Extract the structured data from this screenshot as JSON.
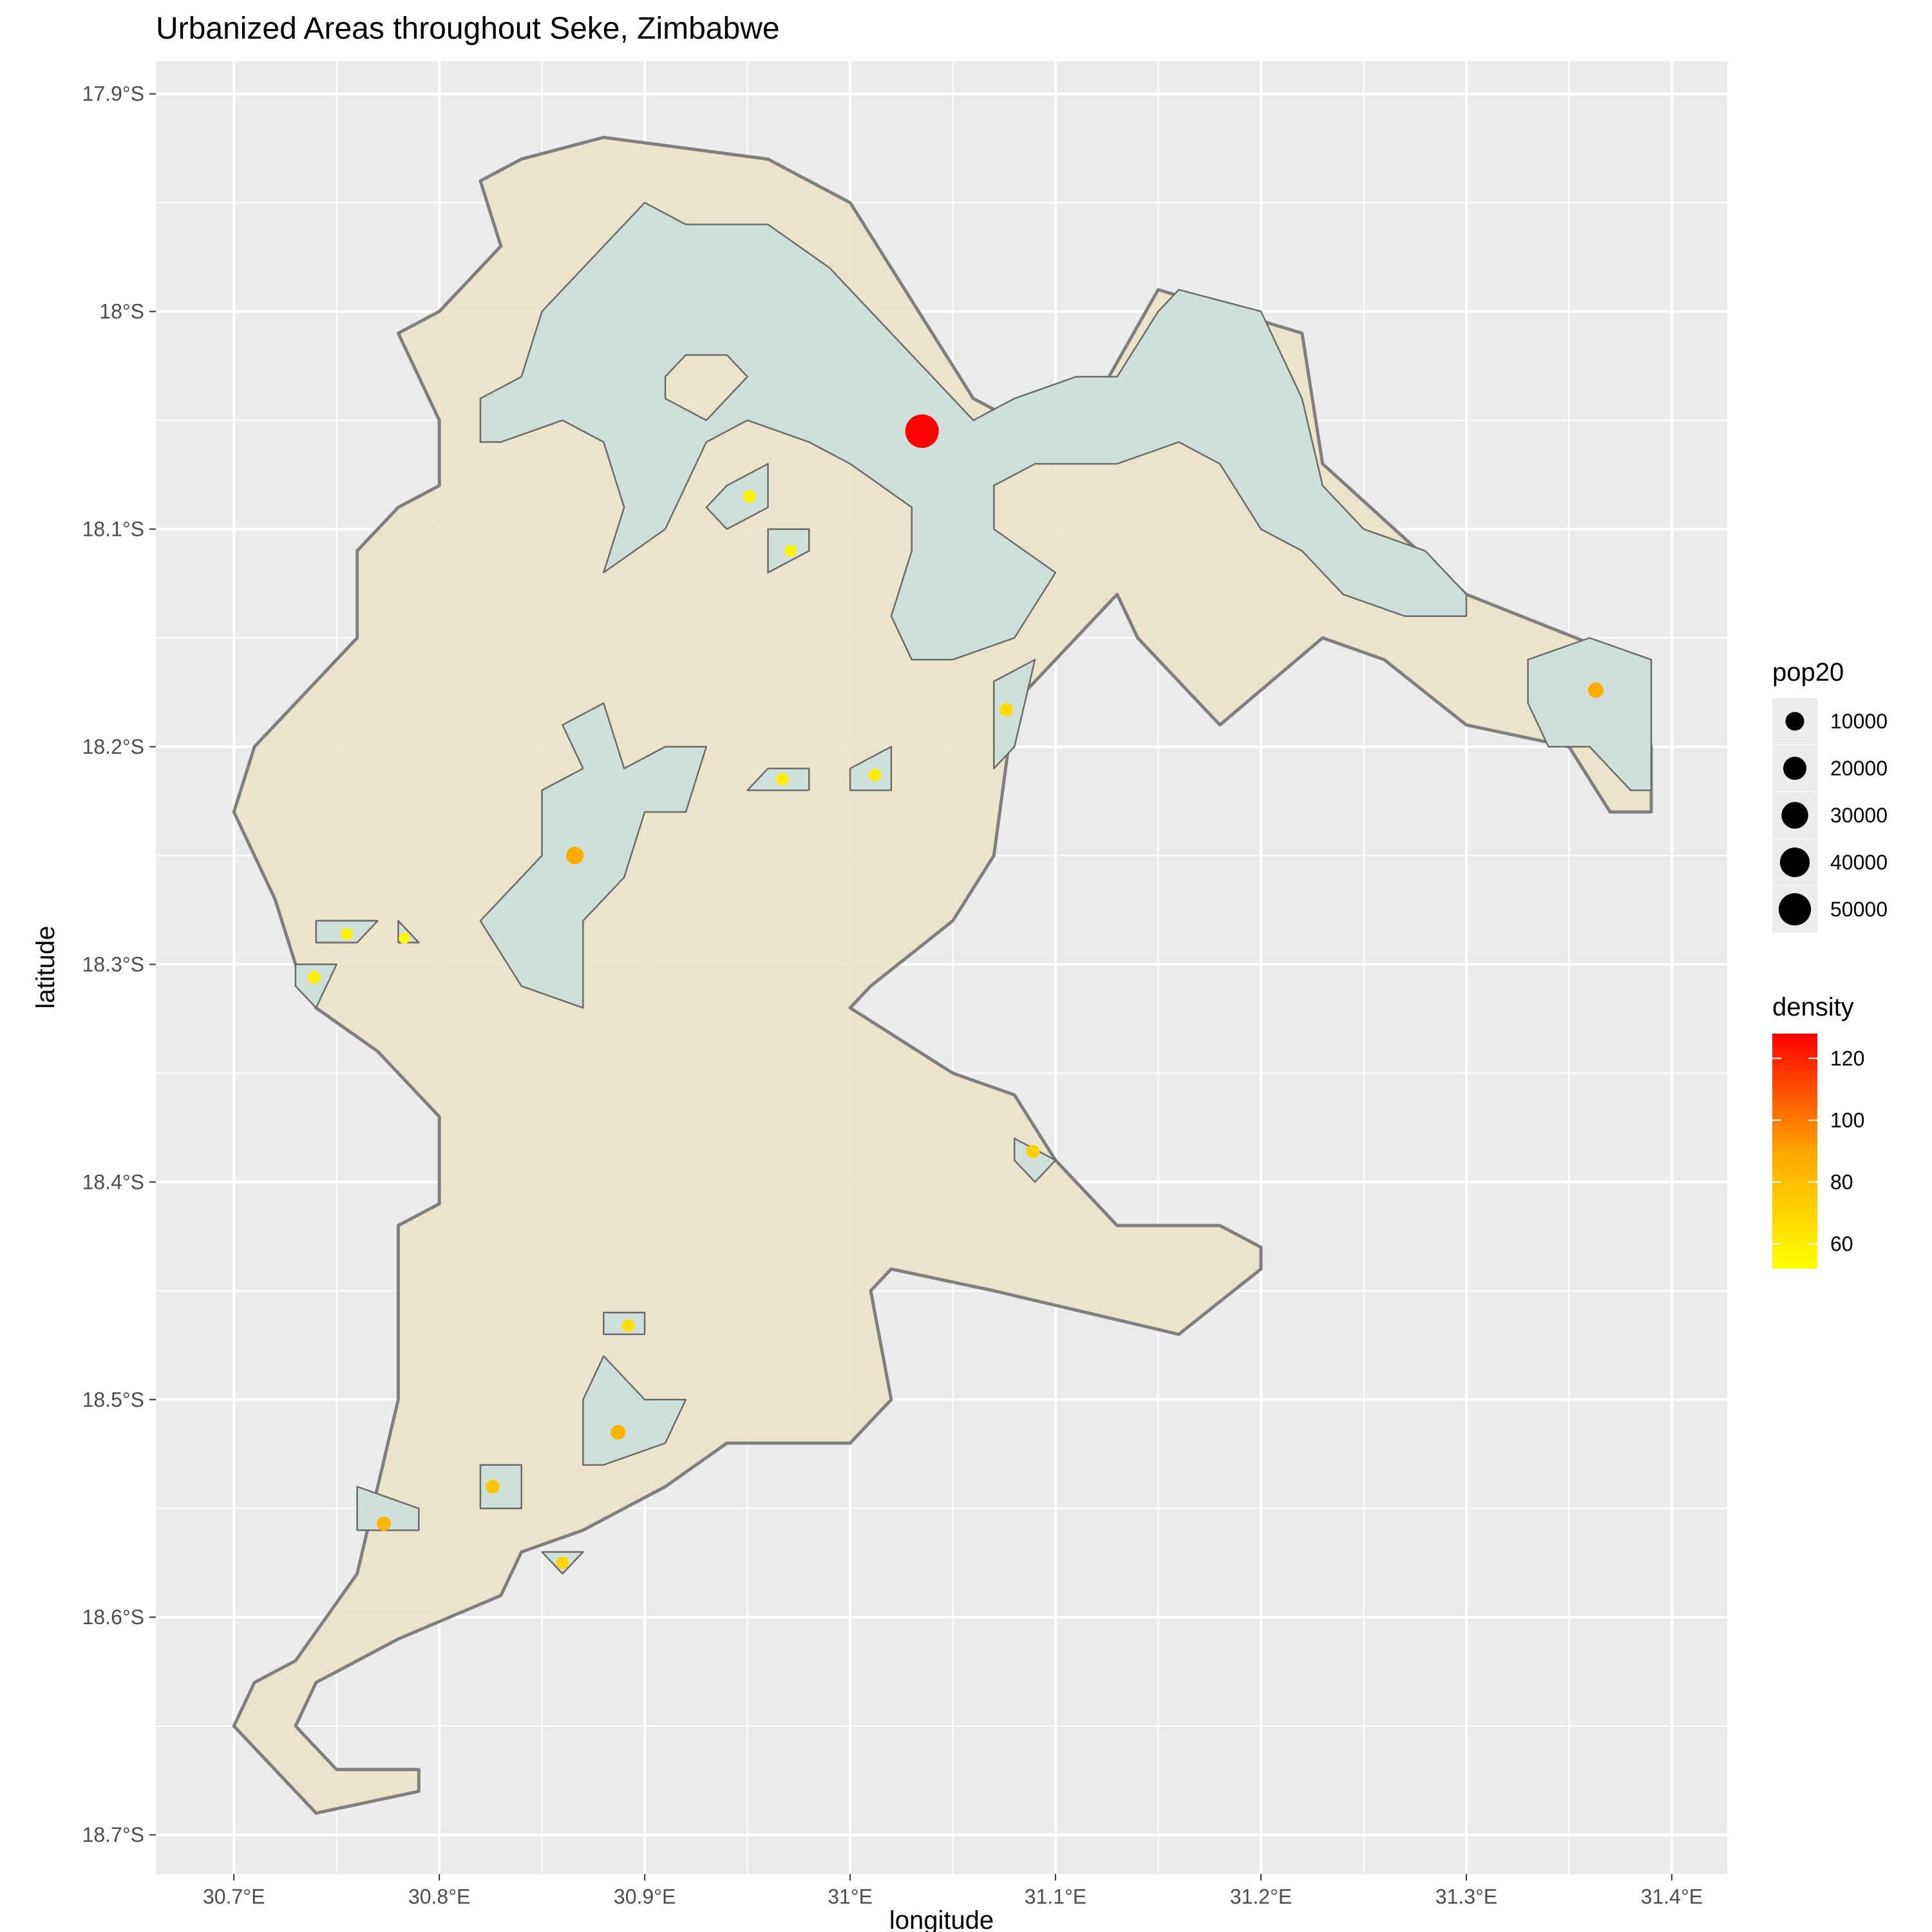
{
  "chart_data": {
    "type": "map",
    "title": "Urbanized Areas throughout Seke, Zimbabwe",
    "xlabel": "longitude",
    "ylabel": "latitude",
    "xlim": [
      30.662,
      31.427
    ],
    "ylim": [
      -18.718,
      -17.885
    ],
    "x_ticks": [
      {
        "value": 30.7,
        "label": "30.7°E"
      },
      {
        "value": 30.8,
        "label": "30.8°E"
      },
      {
        "value": 30.9,
        "label": "30.9°E"
      },
      {
        "value": 31.0,
        "label": "31°E"
      },
      {
        "value": 31.1,
        "label": "31.1°E"
      },
      {
        "value": 31.2,
        "label": "31.2°E"
      },
      {
        "value": 31.3,
        "label": "31.3°E"
      },
      {
        "value": 31.4,
        "label": "31.4°E"
      }
    ],
    "y_ticks": [
      {
        "value": -17.9,
        "label": "17.9°S"
      },
      {
        "value": -18.0,
        "label": "18°S"
      },
      {
        "value": -18.1,
        "label": "18.1°S"
      },
      {
        "value": -18.2,
        "label": "18.2°S"
      },
      {
        "value": -18.3,
        "label": "18.3°S"
      },
      {
        "value": -18.4,
        "label": "18.4°S"
      },
      {
        "value": -18.5,
        "label": "18.5°S"
      },
      {
        "value": -18.6,
        "label": "18.6°S"
      },
      {
        "value": -18.7,
        "label": "18.7°S"
      }
    ],
    "grid": true,
    "colors": {
      "panel_background": "#ebebeb",
      "grid_major": "#ffffff",
      "district_fill": "#ece2c6",
      "district_outline": "#7f7f7f",
      "urban_fill": "#cfe0da",
      "urban_outline": "#6b6b6b",
      "density_low": "#ffff00",
      "density_mid": "#ffa500",
      "density_high": "#ff0000"
    },
    "district_outline": [
      [
        30.88,
        -17.92
      ],
      [
        30.96,
        -17.93
      ],
      [
        31.0,
        -17.95
      ],
      [
        31.06,
        -18.04
      ],
      [
        31.1,
        -18.06
      ],
      [
        31.12,
        -18.04
      ],
      [
        31.15,
        -17.99
      ],
      [
        31.22,
        -18.01
      ],
      [
        31.23,
        -18.07
      ],
      [
        31.3,
        -18.13
      ],
      [
        31.38,
        -18.16
      ],
      [
        31.39,
        -18.2
      ],
      [
        31.39,
        -18.23
      ],
      [
        31.37,
        -18.23
      ],
      [
        31.35,
        -18.2
      ],
      [
        31.3,
        -18.19
      ],
      [
        31.26,
        -18.16
      ],
      [
        31.23,
        -18.15
      ],
      [
        31.18,
        -18.19
      ],
      [
        31.14,
        -18.15
      ],
      [
        31.13,
        -18.13
      ],
      [
        31.11,
        -18.15
      ],
      [
        31.08,
        -18.18
      ],
      [
        31.07,
        -18.25
      ],
      [
        31.05,
        -18.28
      ],
      [
        31.01,
        -18.31
      ],
      [
        31.0,
        -18.32
      ],
      [
        31.05,
        -18.35
      ],
      [
        31.08,
        -18.36
      ],
      [
        31.1,
        -18.39
      ],
      [
        31.13,
        -18.42
      ],
      [
        31.18,
        -18.42
      ],
      [
        31.2,
        -18.43
      ],
      [
        31.2,
        -18.44
      ],
      [
        31.16,
        -18.47
      ],
      [
        31.07,
        -18.45
      ],
      [
        31.02,
        -18.44
      ],
      [
        31.01,
        -18.45
      ],
      [
        31.02,
        -18.5
      ],
      [
        31.0,
        -18.52
      ],
      [
        30.94,
        -18.52
      ],
      [
        30.91,
        -18.54
      ],
      [
        30.87,
        -18.56
      ],
      [
        30.84,
        -18.57
      ],
      [
        30.83,
        -18.59
      ],
      [
        30.78,
        -18.61
      ],
      [
        30.74,
        -18.63
      ],
      [
        30.73,
        -18.65
      ],
      [
        30.75,
        -18.67
      ],
      [
        30.79,
        -18.67
      ],
      [
        30.79,
        -18.68
      ],
      [
        30.74,
        -18.69
      ],
      [
        30.71,
        -18.66
      ],
      [
        30.7,
        -18.65
      ],
      [
        30.71,
        -18.63
      ],
      [
        30.73,
        -18.62
      ],
      [
        30.76,
        -18.58
      ],
      [
        30.77,
        -18.54
      ],
      [
        30.78,
        -18.5
      ],
      [
        30.78,
        -18.44
      ],
      [
        30.78,
        -18.42
      ],
      [
        30.8,
        -18.41
      ],
      [
        30.8,
        -18.37
      ],
      [
        30.77,
        -18.34
      ],
      [
        30.74,
        -18.32
      ],
      [
        30.73,
        -18.3
      ],
      [
        30.72,
        -18.27
      ],
      [
        30.7,
        -18.23
      ],
      [
        30.71,
        -18.2
      ],
      [
        30.74,
        -18.17
      ],
      [
        30.76,
        -18.15
      ],
      [
        30.76,
        -18.13
      ],
      [
        30.76,
        -18.11
      ],
      [
        30.78,
        -18.09
      ],
      [
        30.8,
        -18.08
      ],
      [
        30.8,
        -18.05
      ],
      [
        30.78,
        -18.01
      ],
      [
        30.8,
        -18.0
      ],
      [
        30.82,
        -17.98
      ],
      [
        30.83,
        -17.97
      ],
      [
        30.82,
        -17.94
      ],
      [
        30.84,
        -17.93
      ]
    ],
    "urban_areas": [
      {
        "outline": [
          [
            30.9,
            -17.95
          ],
          [
            30.92,
            -17.96
          ],
          [
            30.96,
            -17.96
          ],
          [
            30.99,
            -17.98
          ],
          [
            31.03,
            -18.02
          ],
          [
            31.06,
            -18.05
          ],
          [
            31.08,
            -18.04
          ],
          [
            31.11,
            -18.03
          ],
          [
            31.13,
            -18.03
          ],
          [
            31.15,
            -18.0
          ],
          [
            31.16,
            -17.99
          ],
          [
            31.2,
            -18.0
          ],
          [
            31.22,
            -18.04
          ],
          [
            31.23,
            -18.08
          ],
          [
            31.25,
            -18.1
          ],
          [
            31.28,
            -18.11
          ],
          [
            31.3,
            -18.13
          ],
          [
            31.3,
            -18.14
          ],
          [
            31.27,
            -18.14
          ],
          [
            31.24,
            -18.13
          ],
          [
            31.22,
            -18.11
          ],
          [
            31.2,
            -18.1
          ],
          [
            31.18,
            -18.07
          ],
          [
            31.16,
            -18.06
          ],
          [
            31.13,
            -18.07
          ],
          [
            31.09,
            -18.07
          ],
          [
            31.07,
            -18.08
          ],
          [
            31.07,
            -18.1
          ],
          [
            31.1,
            -18.12
          ],
          [
            31.08,
            -18.15
          ],
          [
            31.05,
            -18.16
          ],
          [
            31.03,
            -18.16
          ],
          [
            31.02,
            -18.14
          ],
          [
            31.03,
            -18.11
          ],
          [
            31.03,
            -18.09
          ],
          [
            31.0,
            -18.07
          ],
          [
            30.98,
            -18.06
          ],
          [
            30.95,
            -18.05
          ],
          [
            30.93,
            -18.06
          ],
          [
            30.91,
            -18.1
          ],
          [
            30.88,
            -18.12
          ],
          [
            30.89,
            -18.09
          ],
          [
            30.88,
            -18.06
          ],
          [
            30.86,
            -18.05
          ],
          [
            30.83,
            -18.06
          ],
          [
            30.82,
            -18.06
          ],
          [
            30.82,
            -18.04
          ],
          [
            30.84,
            -18.03
          ],
          [
            30.85,
            -18.0
          ],
          [
            30.86,
            -17.99
          ],
          [
            30.88,
            -17.97
          ]
        ],
        "holes": [
          [
            [
              30.92,
              -18.02
            ],
            [
              30.94,
              -18.02
            ],
            [
              30.95,
              -18.03
            ],
            [
              30.93,
              -18.05
            ],
            [
              30.91,
              -18.04
            ],
            [
              30.91,
              -18.03
            ]
          ]
        ]
      },
      {
        "outline": [
          [
            30.94,
            -18.08
          ],
          [
            30.96,
            -18.07
          ],
          [
            30.96,
            -18.09
          ],
          [
            30.94,
            -18.1
          ],
          [
            30.93,
            -18.09
          ]
        ],
        "holes": []
      },
      {
        "outline": [
          [
            30.96,
            -18.1
          ],
          [
            30.98,
            -18.1
          ],
          [
            30.98,
            -18.11
          ],
          [
            30.96,
            -18.12
          ]
        ],
        "holes": []
      },
      {
        "outline": [
          [
            30.88,
            -18.18
          ],
          [
            30.89,
            -18.21
          ],
          [
            30.91,
            -18.2
          ],
          [
            30.93,
            -18.2
          ],
          [
            30.92,
            -18.23
          ],
          [
            30.9,
            -18.23
          ],
          [
            30.89,
            -18.26
          ],
          [
            30.87,
            -18.28
          ],
          [
            30.87,
            -18.32
          ],
          [
            30.84,
            -18.31
          ],
          [
            30.82,
            -18.28
          ],
          [
            30.83,
            -18.27
          ],
          [
            30.85,
            -18.25
          ],
          [
            30.85,
            -18.22
          ],
          [
            30.87,
            -18.21
          ],
          [
            30.86,
            -18.19
          ]
        ],
        "holes": []
      },
      {
        "outline": [
          [
            30.96,
            -18.21
          ],
          [
            30.98,
            -18.21
          ],
          [
            30.98,
            -18.22
          ],
          [
            30.95,
            -18.22
          ]
        ],
        "holes": []
      },
      {
        "outline": [
          [
            31.0,
            -18.21
          ],
          [
            31.02,
            -18.2
          ],
          [
            31.02,
            -18.22
          ],
          [
            31.0,
            -18.22
          ]
        ],
        "holes": []
      },
      {
        "outline": [
          [
            31.07,
            -18.17
          ],
          [
            31.09,
            -18.16
          ],
          [
            31.08,
            -18.2
          ],
          [
            31.07,
            -18.21
          ]
        ],
        "holes": []
      },
      {
        "outline": [
          [
            31.33,
            -18.16
          ],
          [
            31.36,
            -18.15
          ],
          [
            31.39,
            -18.16
          ],
          [
            31.39,
            -18.22
          ],
          [
            31.38,
            -18.22
          ],
          [
            31.36,
            -18.2
          ],
          [
            31.34,
            -18.2
          ],
          [
            31.33,
            -18.18
          ]
        ],
        "holes": []
      },
      {
        "outline": [
          [
            30.74,
            -18.28
          ],
          [
            30.77,
            -18.28
          ],
          [
            30.76,
            -18.29
          ],
          [
            30.74,
            -18.29
          ]
        ],
        "holes": []
      },
      {
        "outline": [
          [
            30.78,
            -18.28
          ],
          [
            30.79,
            -18.29
          ],
          [
            30.78,
            -18.29
          ]
        ],
        "holes": []
      },
      {
        "outline": [
          [
            30.73,
            -18.3
          ],
          [
            30.75,
            -18.3
          ],
          [
            30.74,
            -18.32
          ],
          [
            30.73,
            -18.31
          ]
        ],
        "holes": []
      },
      {
        "outline": [
          [
            31.08,
            -18.38
          ],
          [
            31.1,
            -18.39
          ],
          [
            31.09,
            -18.4
          ],
          [
            31.08,
            -18.39
          ]
        ],
        "holes": []
      },
      {
        "outline": [
          [
            30.88,
            -18.46
          ],
          [
            30.9,
            -18.46
          ],
          [
            30.9,
            -18.47
          ],
          [
            30.88,
            -18.47
          ]
        ],
        "holes": []
      },
      {
        "outline": [
          [
            30.88,
            -18.48
          ],
          [
            30.9,
            -18.5
          ],
          [
            30.92,
            -18.5
          ],
          [
            30.91,
            -18.52
          ],
          [
            30.88,
            -18.53
          ],
          [
            30.87,
            -18.53
          ],
          [
            30.87,
            -18.5
          ]
        ],
        "holes": []
      },
      {
        "outline": [
          [
            30.82,
            -18.53
          ],
          [
            30.84,
            -18.53
          ],
          [
            30.84,
            -18.55
          ],
          [
            30.82,
            -18.55
          ]
        ],
        "holes": []
      },
      {
        "outline": [
          [
            30.76,
            -18.54
          ],
          [
            30.79,
            -18.55
          ],
          [
            30.79,
            -18.56
          ],
          [
            30.77,
            -18.56
          ],
          [
            30.76,
            -18.56
          ]
        ],
        "holes": []
      },
      {
        "outline": [
          [
            30.86,
            -18.57
          ],
          [
            30.87,
            -18.57
          ],
          [
            30.86,
            -18.58
          ],
          [
            30.85,
            -18.57
          ]
        ],
        "holes": []
      }
    ],
    "points": [
      {
        "lon": 31.035,
        "lat": -18.055,
        "pop20": 55000,
        "density": 128
      },
      {
        "lon": 30.951,
        "lat": -18.085,
        "pop20": 2000,
        "density": 57
      },
      {
        "lon": 30.971,
        "lat": -18.11,
        "pop20": 1500,
        "density": 58
      },
      {
        "lon": 30.866,
        "lat": -18.25,
        "pop20": 8000,
        "density": 87
      },
      {
        "lon": 30.967,
        "lat": -18.215,
        "pop20": 1800,
        "density": 60
      },
      {
        "lon": 31.012,
        "lat": -18.213,
        "pop20": 1800,
        "density": 60
      },
      {
        "lon": 31.076,
        "lat": -18.183,
        "pop20": 2500,
        "density": 68
      },
      {
        "lon": 31.363,
        "lat": -18.174,
        "pop20": 5000,
        "density": 87
      },
      {
        "lon": 30.755,
        "lat": -18.286,
        "pop20": 1500,
        "density": 58
      },
      {
        "lon": 30.783,
        "lat": -18.288,
        "pop20": 1000,
        "density": 56
      },
      {
        "lon": 30.739,
        "lat": -18.306,
        "pop20": 2000,
        "density": 60
      },
      {
        "lon": 31.089,
        "lat": -18.386,
        "pop20": 2500,
        "density": 72
      },
      {
        "lon": 30.892,
        "lat": -18.466,
        "pop20": 2000,
        "density": 66
      },
      {
        "lon": 30.887,
        "lat": -18.515,
        "pop20": 4000,
        "density": 85
      },
      {
        "lon": 30.826,
        "lat": -18.54,
        "pop20": 3000,
        "density": 76
      },
      {
        "lon": 30.773,
        "lat": -18.557,
        "pop20": 3500,
        "density": 82
      },
      {
        "lon": 30.86,
        "lat": -18.575,
        "pop20": 2000,
        "density": 70
      }
    ],
    "legend": {
      "size_title": "pop20",
      "size_breaks": [
        10000,
        20000,
        30000,
        40000,
        50000
      ],
      "color_title": "density",
      "color_range": [
        52,
        128
      ],
      "color_breaks": [
        60,
        80,
        100,
        120
      ]
    }
  }
}
